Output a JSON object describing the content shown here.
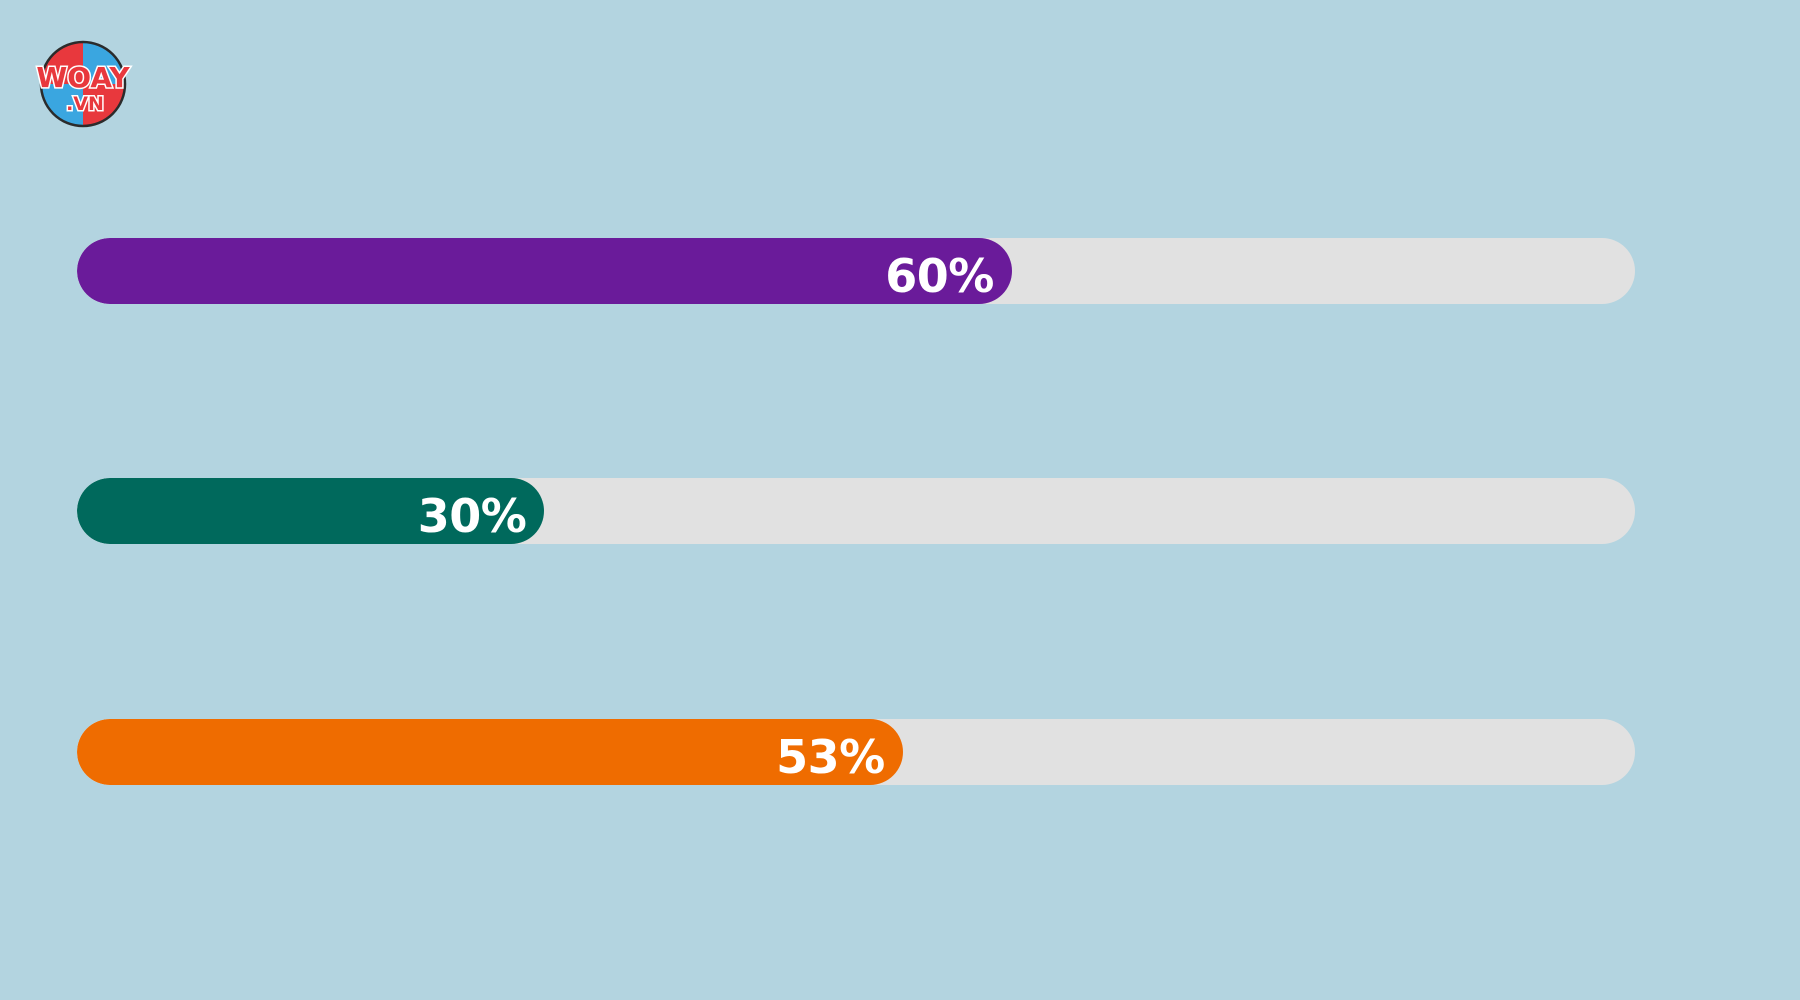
{
  "logo": {
    "text_top": "WOAY",
    "text_bottom": ".VN",
    "colors": [
      "#e8383d",
      "#f6d33c",
      "#3aa6e0",
      "#f08a3c"
    ]
  },
  "background": "#b3d4e0",
  "track_color": "#e1e1e1",
  "chart_data": {
    "type": "bar",
    "orientation": "horizontal",
    "xlim": [
      0,
      100
    ],
    "grid": false,
    "bars": [
      {
        "label": "60%",
        "value": 60,
        "color": "#6a1b9a"
      },
      {
        "label": "30%",
        "value": 30,
        "color": "#00695c"
      },
      {
        "label": "53%",
        "value": 53,
        "color": "#ef6c00"
      }
    ]
  }
}
